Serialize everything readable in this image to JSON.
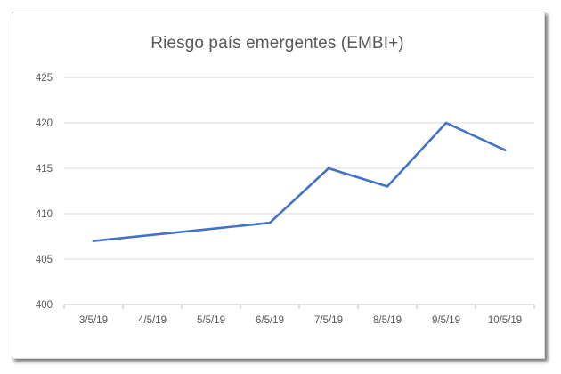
{
  "chart_data": {
    "type": "line",
    "title": "Riesgo país emergentes (EMBI+)",
    "xlabel": "",
    "ylabel": "",
    "categories": [
      "3/5/19",
      "4/5/19",
      "5/5/19",
      "6/5/19",
      "7/5/19",
      "8/5/19",
      "9/5/19",
      "10/5/19"
    ],
    "x": [
      "2019-05-03",
      "2019-05-04",
      "2019-05-05",
      "2019-05-06",
      "2019-05-07",
      "2019-05-08",
      "2019-05-09",
      "2019-05-10"
    ],
    "series": [
      {
        "points": [
          {
            "x": "2019-05-03",
            "y": 407
          },
          {
            "x": "2019-05-06",
            "y": 409
          },
          {
            "x": "2019-05-07",
            "y": 415
          },
          {
            "x": "2019-05-08",
            "y": 413
          },
          {
            "x": "2019-05-09",
            "y": 420
          },
          {
            "x": "2019-05-10",
            "y": 417
          }
        ]
      }
    ],
    "ylim": [
      400,
      425
    ],
    "yticks": [
      400,
      405,
      410,
      415,
      420,
      425
    ],
    "grid": true,
    "legend": "none",
    "colors": {
      "line": "#4472c4",
      "grid": "#d9d9d9",
      "text": "#595959"
    }
  }
}
